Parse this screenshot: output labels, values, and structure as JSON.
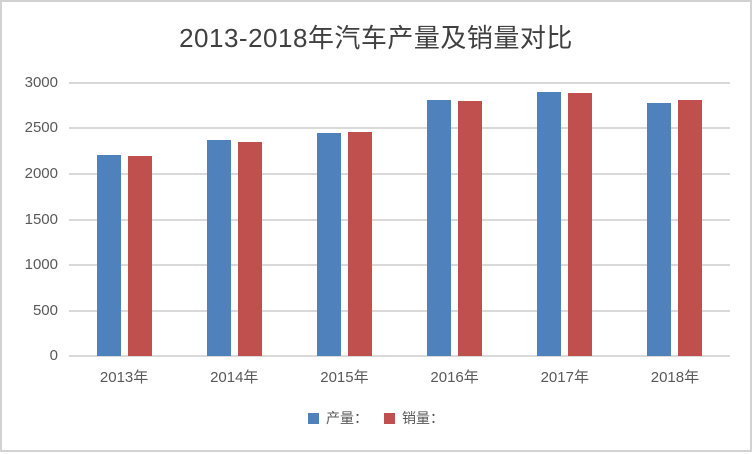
{
  "window": {
    "background": "#ffffff",
    "border_color": "#d2d2d2"
  },
  "chart_data": {
    "type": "bar",
    "title": "2013-2018年汽车产量及销量对比",
    "title_color": "#404040",
    "categories": [
      "2013年",
      "2014年",
      "2015年",
      "2016年",
      "2017年",
      "2018年"
    ],
    "series": [
      {
        "name": "产量：",
        "key": "production",
        "color": "#4F81BD",
        "values": [
          2211.7,
          2372.3,
          2450.3,
          2811.9,
          2901.5,
          2780.9
        ]
      },
      {
        "name": "销量：",
        "key": "sales",
        "color": "#C0504D",
        "values": [
          2198.4,
          2349.2,
          2459.8,
          2802.8,
          2887.9,
          2808.1
        ]
      }
    ],
    "xlabel": "",
    "ylabel": "",
    "ylim": [
      0,
      3000
    ],
    "yticks": [
      0,
      500,
      1000,
      1500,
      2000,
      2500,
      3000
    ],
    "grid": true,
    "gridline_color": "#d9d9d9",
    "axis_label_color": "#595959",
    "legend_position": "bottom"
  }
}
